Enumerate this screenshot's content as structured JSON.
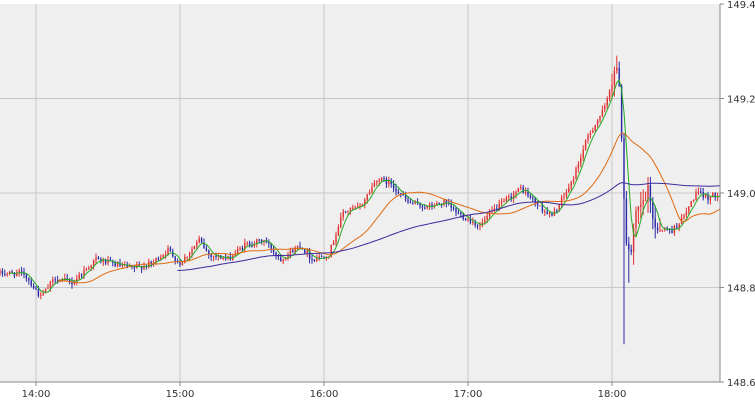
{
  "colors": {
    "background": "#efefef",
    "grid": "#c8c8c8",
    "axis": "#888888",
    "up": "#e03030",
    "down": "#2a2aa8",
    "ma_short": "#22aa22",
    "ma_mid": "#e06a10",
    "ma_long": "#3a2a9a"
  },
  "chart_data": {
    "type": "candlestick",
    "title": "",
    "xlabel": "",
    "ylabel": "",
    "x_range": [
      "13:45",
      "18:45"
    ],
    "ylim": [
      148.6,
      149.4
    ],
    "grid": true,
    "legend": "none",
    "y_ticks": [
      "149.4",
      "149.2",
      "149.0",
      "148.8",
      "148.6"
    ],
    "x_ticks": [
      {
        "time": "14:00",
        "label": "14:00"
      },
      {
        "time": "15:00",
        "label": "15:00"
      },
      {
        "time": "16:00",
        "label": "16:00"
      },
      {
        "time": "17:00",
        "label": "17:00"
      },
      {
        "time": "18:00",
        "label": "18:00"
      }
    ],
    "candle_interval_minutes": 1,
    "price_keypoints": [
      [
        "13:45",
        148.83
      ],
      [
        "13:55",
        148.83
      ],
      [
        "14:02",
        148.78
      ],
      [
        "14:08",
        148.82
      ],
      [
        "14:15",
        148.81
      ],
      [
        "14:25",
        148.86
      ],
      [
        "14:32",
        148.85
      ],
      [
        "14:40",
        148.84
      ],
      [
        "14:48",
        148.85
      ],
      [
        "14:55",
        148.88
      ],
      [
        "15:00",
        148.85
      ],
      [
        "15:08",
        148.9
      ],
      [
        "15:12",
        148.87
      ],
      [
        "15:20",
        148.86
      ],
      [
        "15:27",
        148.89
      ],
      [
        "15:35",
        148.9
      ],
      [
        "15:42",
        148.86
      ],
      [
        "15:50",
        148.89
      ],
      [
        "15:55",
        148.86
      ],
      [
        "16:02",
        148.87
      ],
      [
        "16:08",
        148.96
      ],
      [
        "16:15",
        148.97
      ],
      [
        "16:22",
        149.03
      ],
      [
        "16:28",
        149.02
      ],
      [
        "16:35",
        148.98
      ],
      [
        "16:43",
        148.97
      ],
      [
        "16:50",
        148.98
      ],
      [
        "16:55",
        148.96
      ],
      [
        "17:05",
        148.93
      ],
      [
        "17:10",
        148.96
      ],
      [
        "17:22",
        149.01
      ],
      [
        "17:30",
        148.97
      ],
      [
        "17:35",
        148.95
      ],
      [
        "17:43",
        149.02
      ],
      [
        "17:50",
        149.12
      ],
      [
        "17:57",
        149.18
      ],
      [
        "18:01",
        149.26
      ],
      [
        "18:03",
        149.24
      ],
      [
        "18:05",
        149.0
      ],
      [
        "18:06",
        148.9
      ],
      [
        "18:08",
        148.87
      ],
      [
        "18:10",
        148.95
      ],
      [
        "18:15",
        149.0
      ],
      [
        "18:18",
        148.93
      ],
      [
        "18:25",
        148.92
      ],
      [
        "18:30",
        148.95
      ],
      [
        "18:35",
        149.0
      ],
      [
        "18:40",
        148.99
      ],
      [
        "18:45",
        149.0
      ]
    ],
    "notable_lows": [
      [
        "18:05",
        148.68
      ],
      [
        "18:07",
        148.81
      ]
    ],
    "series": [
      {
        "type": "ma",
        "period": 5
      },
      {
        "type": "ma",
        "period": 25
      },
      {
        "type": "ma",
        "period": 75
      }
    ]
  }
}
